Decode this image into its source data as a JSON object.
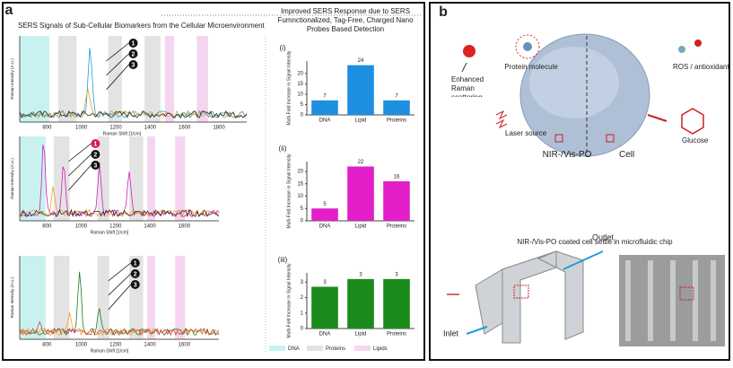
{
  "panel_a": {
    "label": "a",
    "title": "SERS Signals of Sub-Cellular Biomarkers from the Cellular Microenvironment",
    "y_label": "Raman Intensity (A.U.)",
    "x_label": "Raman Shift [1/cm]",
    "spectra_xticks": [
      [
        800,
        1000,
        1200,
        1400,
        1600,
        1800
      ],
      [
        800,
        1000,
        1200,
        1400,
        1600
      ],
      [
        800,
        1000,
        1200,
        1400,
        1600
      ]
    ],
    "markers": [
      "1",
      "2",
      "3"
    ],
    "legend": [
      "DNA",
      "Proteins",
      "Lipids"
    ],
    "bars_title": "Improved SERS Response due to SERS Fumnctionalized, Tag-Free, Charged Nano Probes Based Detection"
  },
  "panel_b": {
    "label": "b",
    "texts": [
      "Enhanced Raman scattering",
      "Protein molecule",
      "ROS / antioxidant",
      "Laser source",
      "Glucose",
      "NIR-/Vis-PO",
      "Cell"
    ],
    "chip_title": "NIR-/Vis-PO coated cell settle in microfluidic chip",
    "outlet": "Outlet",
    "inlet": "Inlet"
  },
  "chart_data": [
    {
      "type": "bar",
      "label": "(i)",
      "y_label": "Multi-Fold Increase in Signal Intensity",
      "categories": [
        "DNA",
        "Lipid",
        "Proteins"
      ],
      "values": [
        7,
        24,
        7
      ],
      "color": "#1e8fe0",
      "ylim": [
        0,
        26
      ],
      "yticks": [
        0,
        5,
        10,
        15,
        20
      ]
    },
    {
      "type": "bar",
      "label": "(ii)",
      "y_label": "Multi-Fold Increase in Signal Intensity",
      "categories": [
        "DNA",
        "Lipid",
        "Proteins"
      ],
      "values": [
        5,
        22,
        16
      ],
      "color": "#e21fc8",
      "ylim": [
        0,
        24
      ],
      "yticks": [
        0,
        5,
        10,
        15,
        20
      ]
    },
    {
      "type": "bar",
      "label": "(iii)",
      "y_label": "Multi-Fold Increase in Signal Intensity",
      "categories": [
        "DNA",
        "Lipid",
        "Proteins"
      ],
      "values": [
        2.7,
        3.2,
        3.2
      ],
      "value_labels": [
        "3",
        "3",
        "3"
      ],
      "color": "#1a8a1a",
      "ylim": [
        0,
        3.6
      ],
      "yticks": [
        0,
        1,
        2,
        3
      ]
    }
  ]
}
